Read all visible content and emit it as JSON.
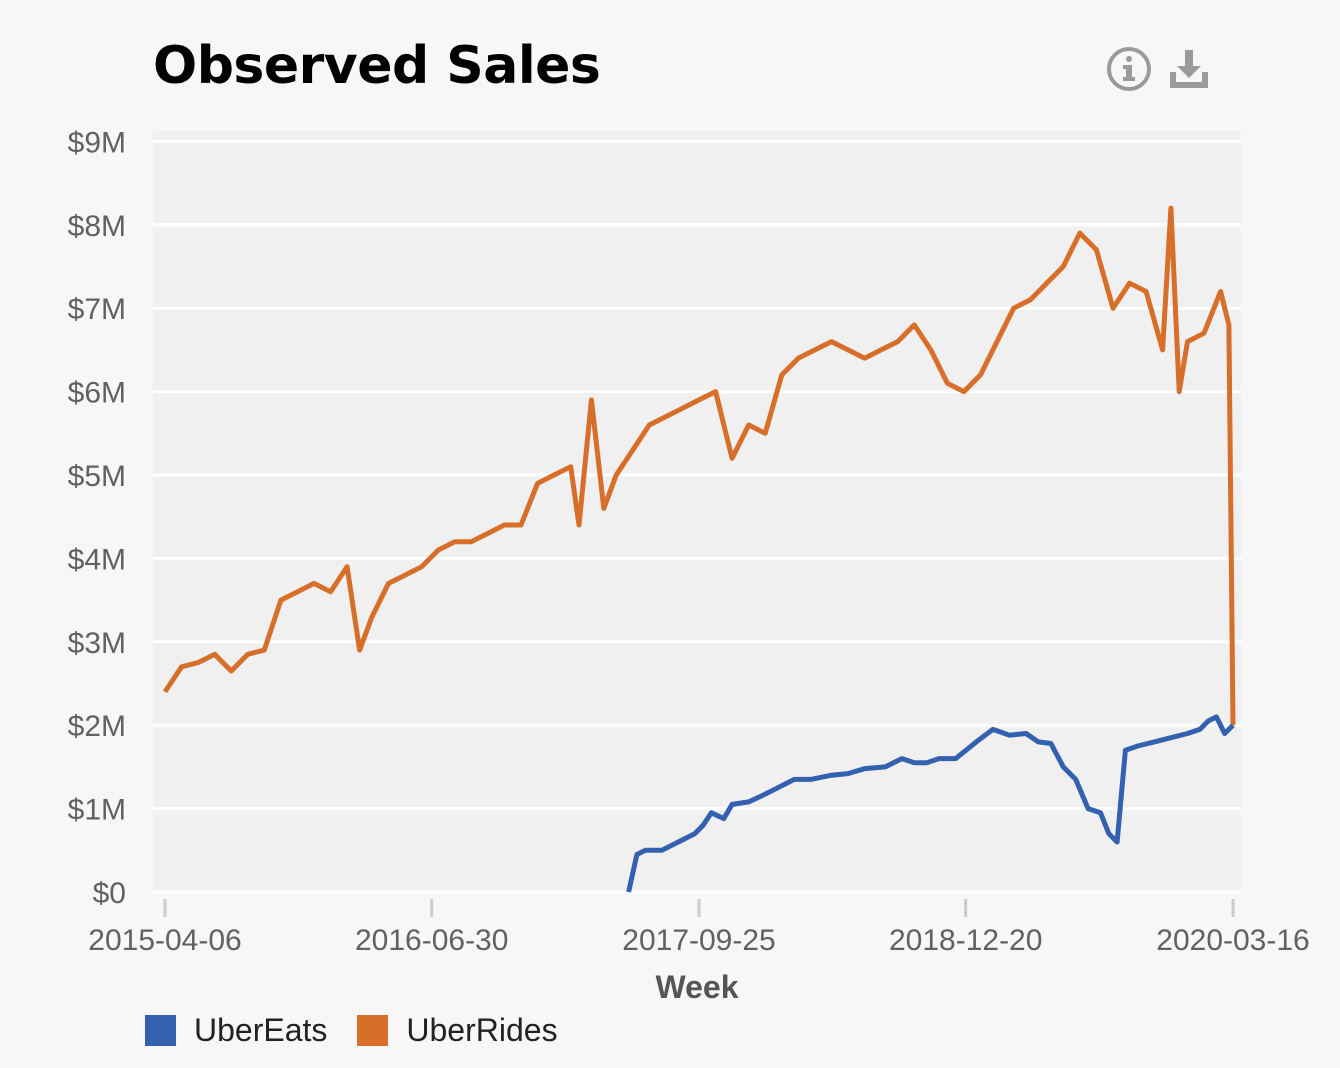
{
  "title": "Observed Sales",
  "toolbar": {
    "info_icon": "info-circle-icon",
    "download_icon": "download-icon"
  },
  "colors": {
    "UberEats": "#3460b0",
    "UberRides": "#d76f2a",
    "plot_bg": "#f0f0f0",
    "grid": "#ffffff"
  },
  "chart_data": {
    "type": "line",
    "title": "Observed Sales",
    "xlabel": "Week",
    "ylabel": "",
    "x_ticks": [
      "2015-04-06",
      "2016-06-30",
      "2017-09-25",
      "2018-12-20",
      "2020-03-16"
    ],
    "y_ticks": [
      "$0",
      "$1M",
      "$2M",
      "$3M",
      "$4M",
      "$5M",
      "$6M",
      "$7M",
      "$8M",
      "$9M"
    ],
    "ylim": [
      0,
      9
    ],
    "xlim": [
      "2015-03-22",
      "2020-03-30"
    ],
    "grid": true,
    "legend": "bottom-left",
    "series": [
      {
        "name": "UberEats",
        "color": "#3460b0",
        "points": [
          [
            "2017-05-29",
            0.0
          ],
          [
            "2017-06-12",
            0.45
          ],
          [
            "2017-06-26",
            0.5
          ],
          [
            "2017-07-24",
            0.5
          ],
          [
            "2017-08-21",
            0.6
          ],
          [
            "2017-09-18",
            0.7
          ],
          [
            "2017-10-02",
            0.8
          ],
          [
            "2017-10-16",
            0.95
          ],
          [
            "2017-11-06",
            0.88
          ],
          [
            "2017-11-20",
            1.05
          ],
          [
            "2017-12-18",
            1.08
          ],
          [
            "2018-01-08",
            1.15
          ],
          [
            "2018-02-05",
            1.25
          ],
          [
            "2018-03-05",
            1.35
          ],
          [
            "2018-04-02",
            1.35
          ],
          [
            "2018-05-07",
            1.4
          ],
          [
            "2018-06-04",
            1.42
          ],
          [
            "2018-07-02",
            1.48
          ],
          [
            "2018-08-06",
            1.5
          ],
          [
            "2018-09-03",
            1.6
          ],
          [
            "2018-09-24",
            1.55
          ],
          [
            "2018-10-15",
            1.55
          ],
          [
            "2018-11-05",
            1.6
          ],
          [
            "2018-12-03",
            1.6
          ],
          [
            "2019-01-07",
            1.8
          ],
          [
            "2019-02-04",
            1.95
          ],
          [
            "2019-03-04",
            1.88
          ],
          [
            "2019-04-01",
            1.9
          ],
          [
            "2019-04-22",
            1.8
          ],
          [
            "2019-05-13",
            1.78
          ],
          [
            "2019-06-03",
            1.5
          ],
          [
            "2019-06-24",
            1.35
          ],
          [
            "2019-07-15",
            1.0
          ],
          [
            "2019-08-05",
            0.95
          ],
          [
            "2019-08-19",
            0.7
          ],
          [
            "2019-09-02",
            0.6
          ],
          [
            "2019-09-16",
            1.7
          ],
          [
            "2019-10-07",
            1.75
          ],
          [
            "2019-11-04",
            1.8
          ],
          [
            "2019-12-02",
            1.85
          ],
          [
            "2019-12-30",
            1.9
          ],
          [
            "2020-01-20",
            1.95
          ],
          [
            "2020-02-03",
            2.05
          ],
          [
            "2020-02-17",
            2.1
          ],
          [
            "2020-03-02",
            1.9
          ],
          [
            "2020-03-16",
            2.0
          ]
        ]
      },
      {
        "name": "UberRides",
        "color": "#d76f2a",
        "points": [
          [
            "2015-04-06",
            2.4
          ],
          [
            "2015-05-04",
            2.7
          ],
          [
            "2015-06-01",
            2.75
          ],
          [
            "2015-06-29",
            2.85
          ],
          [
            "2015-07-27",
            2.65
          ],
          [
            "2015-08-24",
            2.85
          ],
          [
            "2015-09-21",
            2.9
          ],
          [
            "2015-10-19",
            3.5
          ],
          [
            "2015-11-16",
            3.6
          ],
          [
            "2015-12-14",
            3.7
          ],
          [
            "2016-01-11",
            3.6
          ],
          [
            "2016-02-08",
            3.9
          ],
          [
            "2016-02-29",
            2.9
          ],
          [
            "2016-03-21",
            3.3
          ],
          [
            "2016-04-18",
            3.7
          ],
          [
            "2016-05-16",
            3.8
          ],
          [
            "2016-06-13",
            3.9
          ],
          [
            "2016-07-11",
            4.1
          ],
          [
            "2016-08-08",
            4.2
          ],
          [
            "2016-09-05",
            4.2
          ],
          [
            "2016-10-03",
            4.3
          ],
          [
            "2016-10-31",
            4.4
          ],
          [
            "2016-11-28",
            4.4
          ],
          [
            "2016-12-26",
            4.9
          ],
          [
            "2017-01-23",
            5.0
          ],
          [
            "2017-02-20",
            5.1
          ],
          [
            "2017-03-06",
            4.4
          ],
          [
            "2017-03-27",
            5.9
          ],
          [
            "2017-04-17",
            4.6
          ],
          [
            "2017-05-08",
            5.0
          ],
          [
            "2017-06-05",
            5.3
          ],
          [
            "2017-07-03",
            5.6
          ],
          [
            "2017-07-31",
            5.7
          ],
          [
            "2017-08-28",
            5.8
          ],
          [
            "2017-09-25",
            5.9
          ],
          [
            "2017-10-23",
            6.0
          ],
          [
            "2017-11-20",
            5.2
          ],
          [
            "2017-12-18",
            5.6
          ],
          [
            "2018-01-15",
            5.5
          ],
          [
            "2018-02-12",
            6.2
          ],
          [
            "2018-03-12",
            6.4
          ],
          [
            "2018-04-09",
            6.5
          ],
          [
            "2018-05-07",
            6.6
          ],
          [
            "2018-06-04",
            6.5
          ],
          [
            "2018-07-02",
            6.4
          ],
          [
            "2018-07-30",
            6.5
          ],
          [
            "2018-08-27",
            6.6
          ],
          [
            "2018-09-24",
            6.8
          ],
          [
            "2018-10-22",
            6.5
          ],
          [
            "2018-11-19",
            6.1
          ],
          [
            "2018-12-17",
            6.0
          ],
          [
            "2019-01-14",
            6.2
          ],
          [
            "2019-02-11",
            6.6
          ],
          [
            "2019-03-11",
            7.0
          ],
          [
            "2019-04-08",
            7.1
          ],
          [
            "2019-05-06",
            7.3
          ],
          [
            "2019-06-03",
            7.5
          ],
          [
            "2019-07-01",
            7.9
          ],
          [
            "2019-07-29",
            7.7
          ],
          [
            "2019-08-26",
            7.0
          ],
          [
            "2019-09-23",
            7.3
          ],
          [
            "2019-10-21",
            7.2
          ],
          [
            "2019-11-18",
            6.5
          ],
          [
            "2019-12-02",
            8.2
          ],
          [
            "2019-12-16",
            6.0
          ],
          [
            "2019-12-30",
            6.6
          ],
          [
            "2020-01-27",
            6.7
          ],
          [
            "2020-02-24",
            7.2
          ],
          [
            "2020-03-09",
            6.8
          ],
          [
            "2020-03-16",
            2.0
          ]
        ]
      }
    ]
  },
  "legend": {
    "items": [
      {
        "label": "UberEats",
        "color": "#3460b0"
      },
      {
        "label": "UberRides",
        "color": "#d76f2a"
      }
    ]
  }
}
